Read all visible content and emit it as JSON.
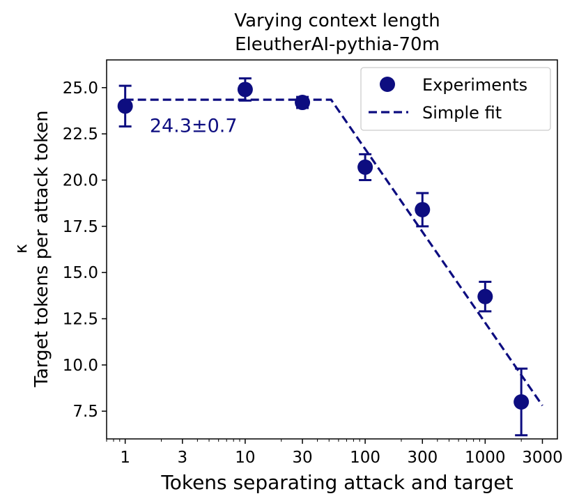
{
  "chart_data": {
    "type": "scatter",
    "title": "Varying context length",
    "subtitle": "EleutherAI-pythia-70m",
    "xlabel": "Tokens separating attack and target",
    "ylabel_symbol": "κ",
    "ylabel": "Target tokens per attack token",
    "xscale": "log",
    "xlim": [
      0.7,
      4000
    ],
    "ylim": [
      6.0,
      26.5
    ],
    "xticks": [
      1,
      3,
      10,
      30,
      100,
      300,
      1000,
      3000
    ],
    "xtick_labels": [
      "1",
      "3",
      "10",
      "30",
      "100",
      "300",
      "1000",
      "3000"
    ],
    "yticks": [
      7.5,
      10.0,
      12.5,
      15.0,
      17.5,
      20.0,
      22.5,
      25.0
    ],
    "ytick_labels": [
      "7.5",
      "10.0",
      "12.5",
      "15.0",
      "17.5",
      "20.0",
      "22.5",
      "25.0"
    ],
    "series": [
      {
        "name": "Experiments",
        "kind": "errorbar",
        "color": "#0d0d80",
        "x": [
          1,
          10,
          30,
          100,
          300,
          1000,
          2000
        ],
        "y": [
          24.0,
          24.9,
          24.2,
          20.7,
          18.4,
          13.7,
          8.0
        ],
        "yerr_low": [
          1.1,
          0.6,
          0.3,
          0.7,
          0.9,
          0.8,
          1.8
        ],
        "yerr_high": [
          1.1,
          0.6,
          0.3,
          0.7,
          0.9,
          0.8,
          1.8
        ]
      },
      {
        "name": "Simple fit",
        "kind": "dashed-line",
        "color": "#0d0d80",
        "x": [
          1,
          52,
          3000
        ],
        "y": [
          24.35,
          24.35,
          7.8
        ]
      }
    ],
    "annotation": {
      "text": "24.3±0.7",
      "x": 1.6,
      "y": 22.6,
      "color": "#0d0d80"
    },
    "legend": {
      "position": "top-right",
      "entries": [
        "Experiments",
        "Simple fit"
      ]
    }
  }
}
